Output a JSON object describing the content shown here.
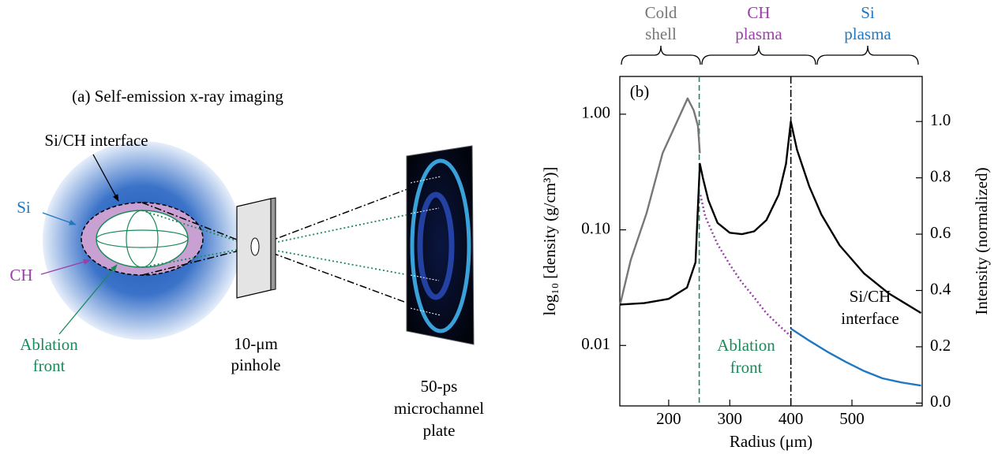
{
  "diagram": {
    "title": "(a)  Self-emission x-ray imaging",
    "labels": {
      "interface": "Si/CH interface",
      "si": "Si",
      "ch": "CH",
      "ablation": [
        "Ablation",
        "front"
      ],
      "pinhole": [
        "10-μm",
        "pinhole"
      ],
      "detector": [
        "50-ps",
        "microchannel",
        "plate"
      ]
    }
  },
  "chart_data": {
    "type": "line",
    "title": "(b)",
    "xlabel": "Radius (μm)",
    "ylabel": "log₁₀ [density (g/cm³)]",
    "y2label": "Intensity (normalized)",
    "xlim": [
      120,
      615
    ],
    "ylim": [
      0.003,
      2.12
    ],
    "y2lim": [
      -0.01,
      1.16
    ],
    "log_y": true,
    "xticks": [
      200,
      300,
      400,
      500
    ],
    "yticks": [
      {
        "value": 1,
        "label": "1.00"
      },
      {
        "value": 0.1,
        "label": "0.10"
      },
      0.01
    ],
    "y2ticks": [
      {
        "value": 0,
        "label": "0.0"
      },
      0.2,
      0.4,
      0.6,
      0.8,
      {
        "value": 1,
        "label": "1.0"
      }
    ],
    "regions": [
      {
        "label": [
          "Cold",
          "shell"
        ],
        "color": "#777777"
      },
      {
        "label": [
          "CH",
          "plasma"
        ],
        "color": "#9b3fa8"
      },
      {
        "label": [
          "Si",
          "plasma"
        ],
        "color": "#1f78c1"
      }
    ],
    "markers": [
      {
        "x": 250,
        "color": "#1a8a5a",
        "style": "dashed",
        "label": [
          "Ablation",
          "front"
        ]
      },
      {
        "x": 400,
        "color": "#000000",
        "style": "dashdot",
        "label": [
          "Si/CH",
          "interface"
        ]
      }
    ],
    "series": [
      {
        "color": "#777777",
        "style": "solid",
        "axis": "y",
        "x": [
          120,
          138,
          164,
          190,
          216,
          231,
          241,
          248,
          251
        ],
        "values": [
          0.022,
          0.055,
          0.14,
          0.46,
          0.92,
          1.37,
          1.08,
          0.79,
          0.46
        ]
      },
      {
        "color": "#9b3fa8",
        "style": "dotted",
        "axis": "y",
        "x": [
          252,
          260,
          280,
          300,
          320,
          340,
          360,
          380,
          400
        ],
        "values": [
          0.2,
          0.13,
          0.075,
          0.05,
          0.035,
          0.026,
          0.019,
          0.015,
          0.012
        ]
      },
      {
        "color": "#1f78c1",
        "style": "solid",
        "axis": "y",
        "x": [
          400,
          430,
          460,
          490,
          520,
          550,
          580,
          613
        ],
        "values": [
          0.014,
          0.011,
          0.0088,
          0.0072,
          0.006,
          0.0052,
          0.0048,
          0.0045
        ]
      },
      {
        "color": "#000000",
        "style": "solid",
        "axis": "y2",
        "x": [
          120,
          160,
          200,
          230,
          244,
          248,
          251,
          256,
          265,
          280,
          300,
          320,
          340,
          360,
          380,
          392,
          400,
          410,
          430,
          450,
          480,
          520,
          560,
          613
        ],
        "values": [
          0.35,
          0.355,
          0.37,
          0.41,
          0.5,
          0.7,
          0.85,
          0.8,
          0.72,
          0.64,
          0.605,
          0.6,
          0.61,
          0.65,
          0.74,
          0.85,
          1.0,
          0.9,
          0.77,
          0.67,
          0.56,
          0.46,
          0.39,
          0.32
        ]
      }
    ]
  }
}
